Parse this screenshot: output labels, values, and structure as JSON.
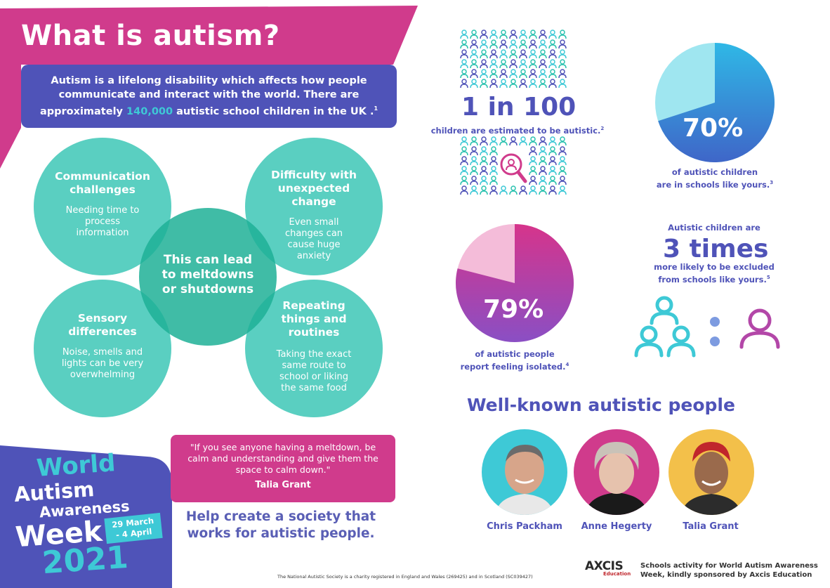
{
  "header": {
    "title": "What is autism?",
    "intro_part1": "Autism is a lifelong disability which affects how people communicate and interact with the world. There are approximately ",
    "intro_highlight": "140,000",
    "intro_part2": " autistic school children in the UK .",
    "intro_ref": "1"
  },
  "circles": {
    "communication": {
      "title": "Communication challenges",
      "text": "Needing time to process information"
    },
    "change": {
      "title": "Difficulty with unexpected change",
      "text": "Even small changes can cause huge anxiety"
    },
    "center": {
      "title": "This can lead to meltdowns or shutdowns"
    },
    "sensory": {
      "title": "Sensory differences",
      "text": "Noise, smells and lights can be very overwhelming"
    },
    "repeating": {
      "title": "Repeating things and routines",
      "text": "Taking the exact same route to school or liking the same food"
    }
  },
  "badge": {
    "line1": "World",
    "line2": "Autism",
    "line3": "Awareness",
    "line4": "Week",
    "dates1": "29 March",
    "dates2": "- 4 April",
    "year": "2021"
  },
  "quote": {
    "text": "\"If you see anyone having a meltdown, be calm and understanding and give them the space to calm down.\"",
    "author": "Talia Grant"
  },
  "cta": "Help create a society that works for autistic people.",
  "footnote": "The National Autistic Society is a charity registered in England and Wales (269425) and in Scotland (SC039427)",
  "stats": {
    "one_in_100": {
      "big": "1 in 100",
      "caption": "children are estimated to be autistic.",
      "ref": "2"
    },
    "seventy": {
      "big": "70%",
      "value": 70,
      "caption1": "of autistic children",
      "caption2": "are in schools like yours.",
      "ref": "3"
    },
    "seventy_nine": {
      "big": "79%",
      "value": 79,
      "caption1": "of autistic people",
      "caption2": "report feeling isolated.",
      "ref": "4"
    },
    "three_times": {
      "pre": "Autistic children are",
      "big": "3 times",
      "caption1": "more likely to be excluded",
      "caption2": "from schools like yours.",
      "ref": "5"
    }
  },
  "people": {
    "title": "Well-known autistic people",
    "list": [
      {
        "name": "Chris Packham"
      },
      {
        "name": "Anne Hegerty"
      },
      {
        "name": "Talia Grant"
      }
    ]
  },
  "sponsor": {
    "logo": "AXCIS",
    "logo_sub": "Education",
    "line1": "Schools activity for World Autism Awareness",
    "line2": "Week, kindly sponsored by Axcis Education"
  },
  "colors": {
    "magenta": "#d03b8c",
    "blue": "#4f53b8",
    "teal": "#2bc2b0",
    "cyan": "#3ec9d6"
  }
}
